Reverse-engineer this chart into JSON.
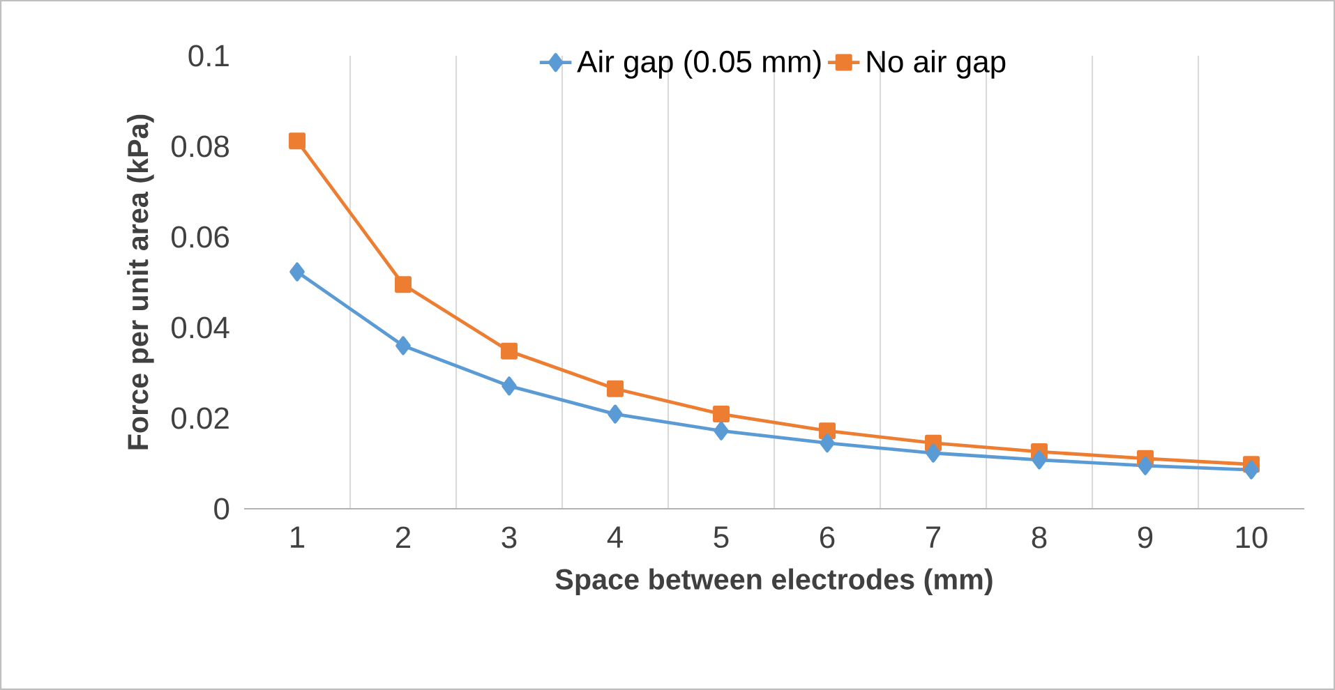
{
  "chart_data": {
    "type": "line",
    "xlabel": "Space between electrodes (mm)",
    "ylabel": "Force per unit area (kPa)",
    "categories": [
      "1",
      "2",
      "3",
      "4",
      "5",
      "6",
      "7",
      "8",
      "9",
      "10"
    ],
    "series": [
      {
        "name": "Air gap (0.05 mm)",
        "color": "#5b9bd5",
        "marker": "diamond",
        "values": [
          0.0523,
          0.036,
          0.0271,
          0.0209,
          0.0172,
          0.0145,
          0.0123,
          0.0108,
          0.0095,
          0.0086
        ]
      },
      {
        "name": "No air gap",
        "color": "#ed7d31",
        "marker": "square",
        "values": [
          0.0812,
          0.0495,
          0.0348,
          0.0265,
          0.0209,
          0.0172,
          0.0145,
          0.0126,
          0.0111,
          0.0098
        ]
      }
    ],
    "ylim": [
      0,
      0.1
    ],
    "yticks": [
      0,
      0.02,
      0.04,
      0.06,
      0.08,
      0.1
    ],
    "grid": "x",
    "legend": "top",
    "line_style": "solid"
  }
}
